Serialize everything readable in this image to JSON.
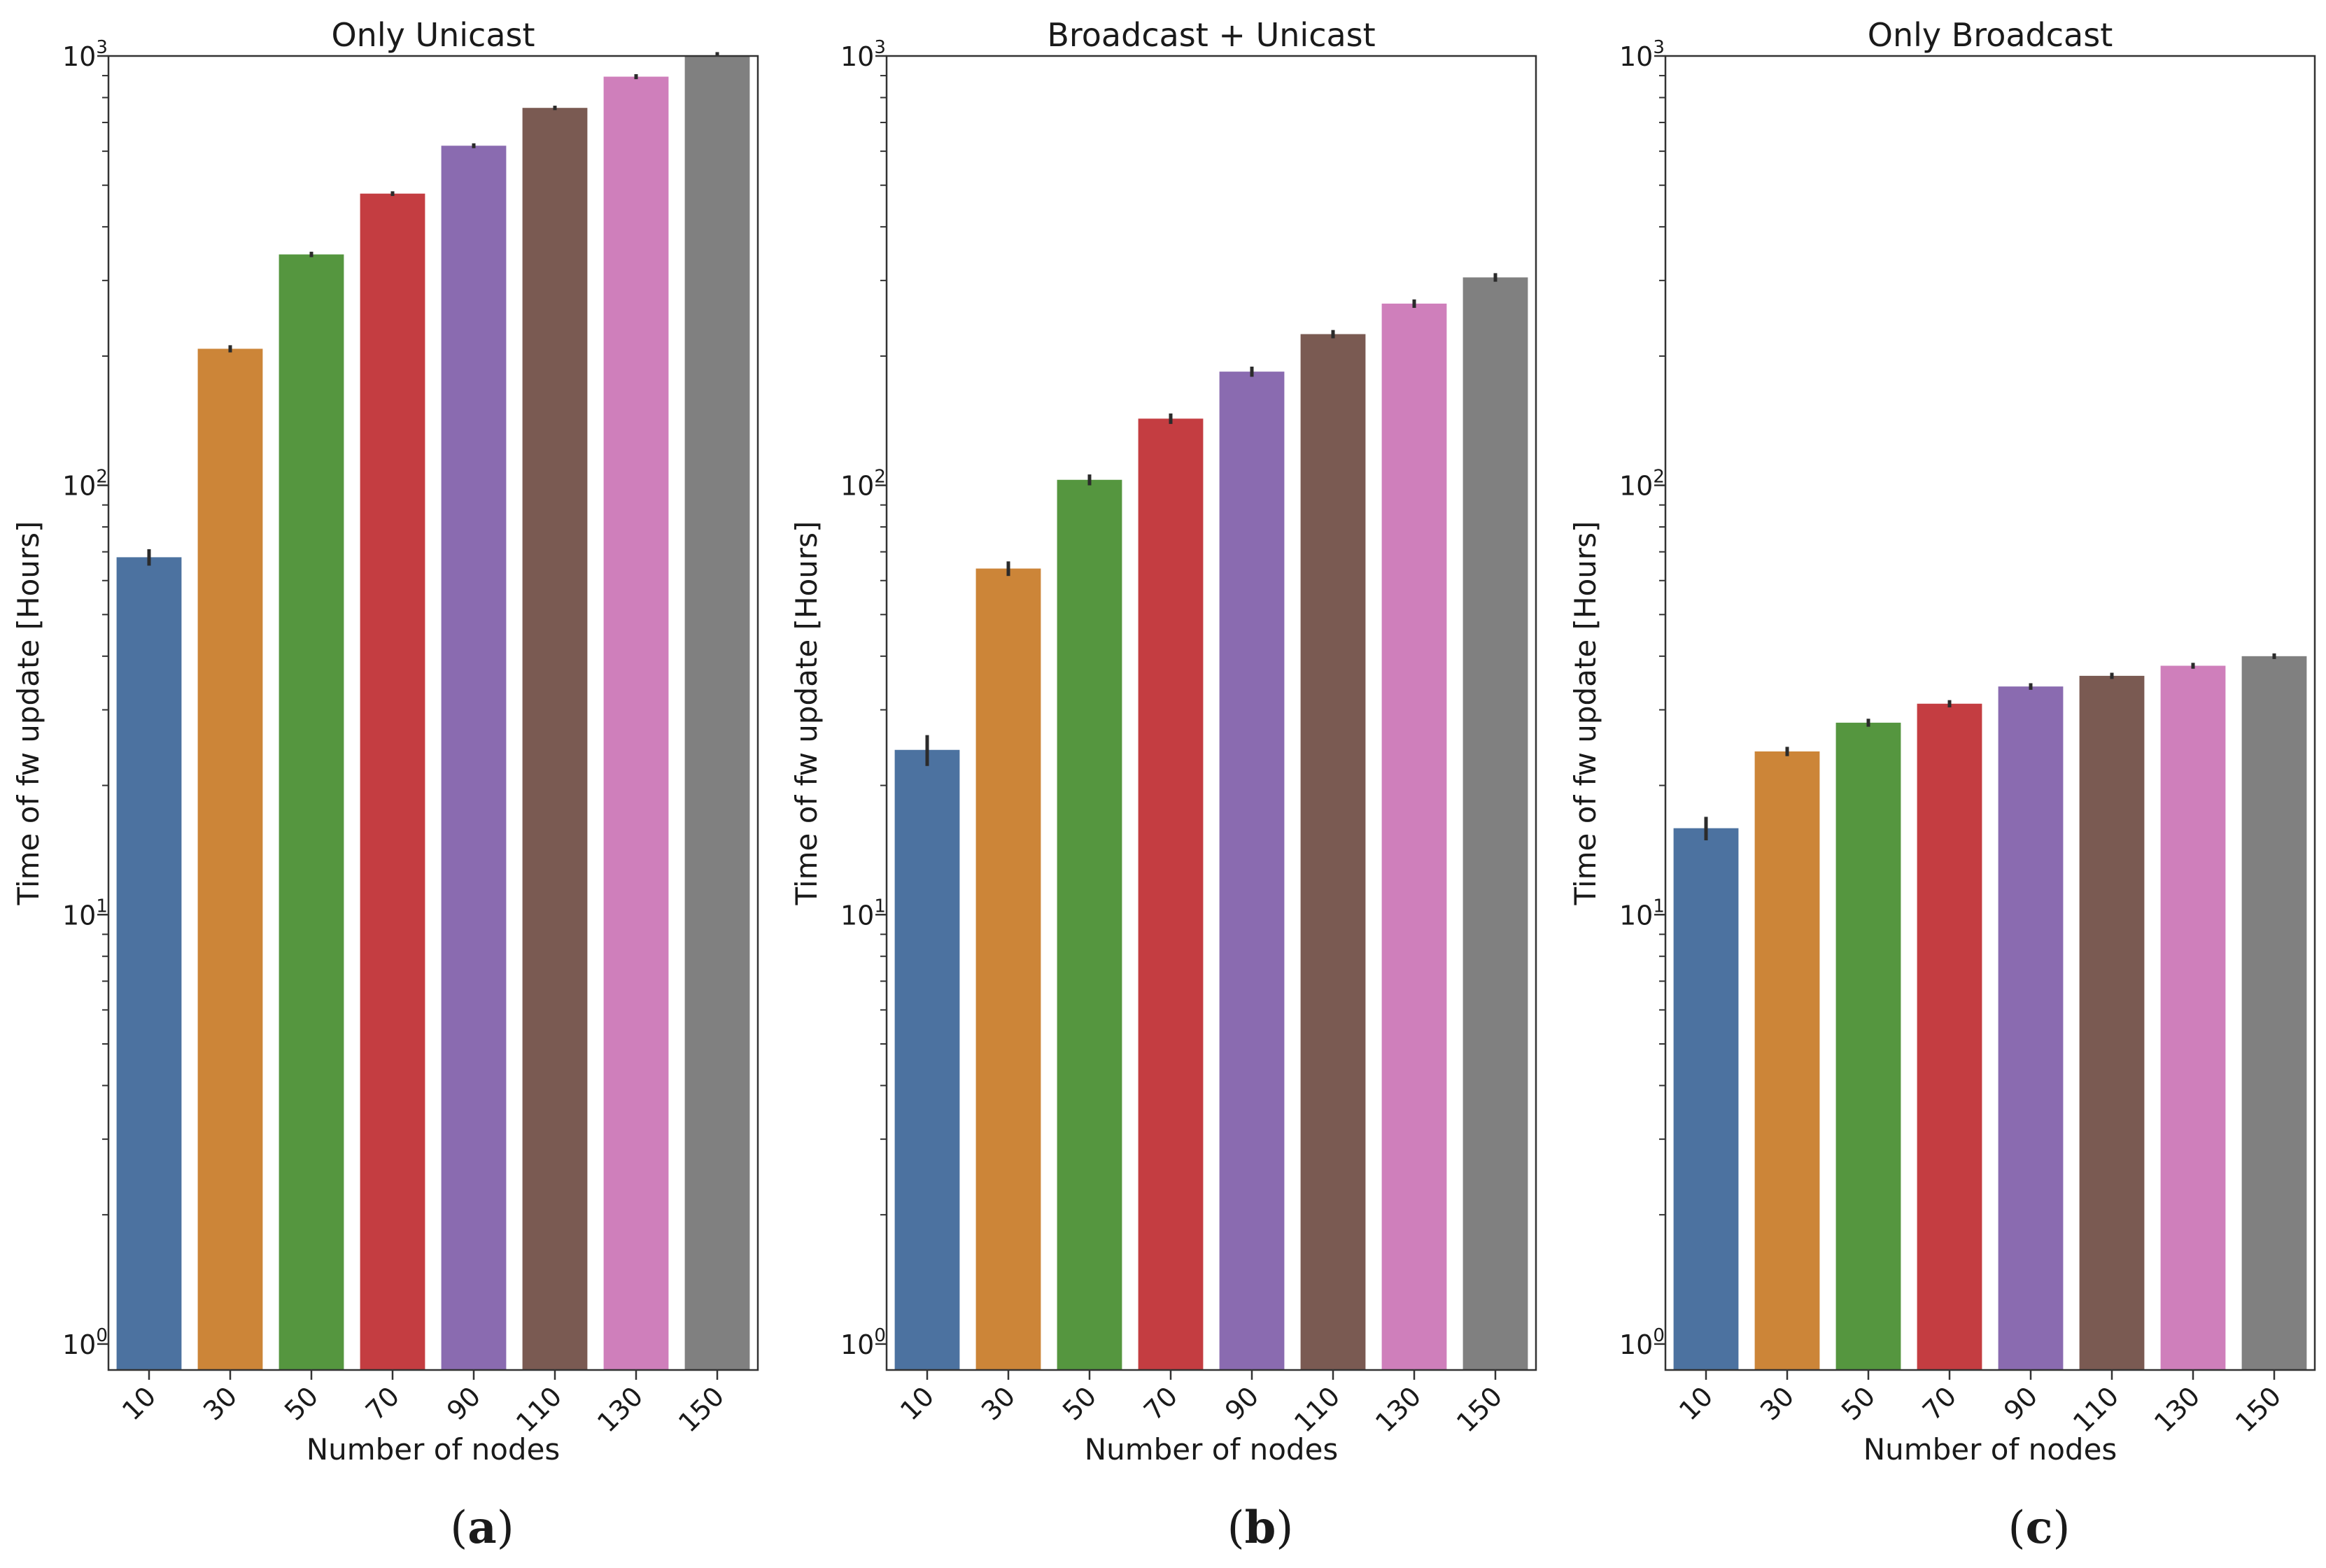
{
  "chart_data": [
    {
      "type": "bar",
      "scale": "log",
      "title": "Only Unicast",
      "xlabel": "Number of nodes",
      "ylabel": "Time of fw update [Hours]",
      "categories": [
        "10",
        "30",
        "50",
        "70",
        "90",
        "110",
        "130",
        "150"
      ],
      "values": [
        68,
        208,
        345,
        478,
        618,
        757,
        895,
        1035
      ],
      "errors": [
        3,
        4,
        5,
        6,
        8,
        9,
        12,
        14
      ],
      "ylim": [
        0.87,
        1000
      ],
      "yticks": [
        {
          "base": "10",
          "exp": "0",
          "value": 1
        },
        {
          "base": "10",
          "exp": "1",
          "value": 10
        },
        {
          "base": "10",
          "exp": "2",
          "value": 100
        },
        {
          "base": "10",
          "exp": "3",
          "value": 1000
        }
      ],
      "colors": [
        "#4c72a0",
        "#cc8538",
        "#55963f",
        "#c43d41",
        "#8a6bb0",
        "#7a5a52",
        "#cf7fbb",
        "#808080"
      ],
      "caption_open": "(",
      "caption_letter": "a",
      "caption_close": ")"
    },
    {
      "type": "bar",
      "scale": "log",
      "title": "Broadcast + Unicast",
      "xlabel": "Number of nodes",
      "ylabel": "Time of fw update [Hours]",
      "categories": [
        "10",
        "30",
        "50",
        "70",
        "90",
        "110",
        "130",
        "150"
      ],
      "values": [
        24.2,
        64,
        103,
        143,
        184,
        225,
        265,
        305
      ],
      "errors": [
        2,
        2.5,
        3,
        4,
        5,
        5,
        6,
        7
      ],
      "ylim": [
        0.87,
        1000
      ],
      "yticks": [
        {
          "base": "10",
          "exp": "0",
          "value": 1
        },
        {
          "base": "10",
          "exp": "1",
          "value": 10
        },
        {
          "base": "10",
          "exp": "2",
          "value": 100
        },
        {
          "base": "10",
          "exp": "3",
          "value": 1000
        }
      ],
      "colors": [
        "#4c72a0",
        "#cc8538",
        "#55963f",
        "#c43d41",
        "#8a6bb0",
        "#7a5a52",
        "#cf7fbb",
        "#808080"
      ],
      "caption_open": "(",
      "caption_letter": "b",
      "caption_close": ")"
    },
    {
      "type": "bar",
      "scale": "log",
      "title": "Only Broadcast",
      "xlabel": "Number of nodes",
      "ylabel": "Time of fw update [Hours]",
      "categories": [
        "10",
        "30",
        "50",
        "70",
        "90",
        "110",
        "130",
        "150"
      ],
      "values": [
        15.9,
        24,
        28,
        31,
        34,
        36,
        38,
        40
      ],
      "errors": [
        1,
        0.6,
        0.6,
        0.6,
        0.6,
        0.6,
        0.6,
        0.6
      ],
      "ylim": [
        0.87,
        1000
      ],
      "yticks": [
        {
          "base": "10",
          "exp": "0",
          "value": 1
        },
        {
          "base": "10",
          "exp": "1",
          "value": 10
        },
        {
          "base": "10",
          "exp": "2",
          "value": 100
        },
        {
          "base": "10",
          "exp": "3",
          "value": 1000
        }
      ],
      "colors": [
        "#4c72a0",
        "#cc8538",
        "#55963f",
        "#c43d41",
        "#8a6bb0",
        "#7a5a52",
        "#cf7fbb",
        "#808080"
      ],
      "caption_open": "(",
      "caption_letter": "c",
      "caption_close": ")"
    }
  ]
}
